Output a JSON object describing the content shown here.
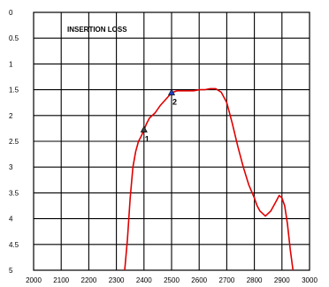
{
  "chart_data": {
    "type": "line",
    "title": "INSERTION LOSS",
    "xlabel": "",
    "ylabel": "",
    "xlim": [
      2000,
      3000
    ],
    "ylim": [
      0,
      5
    ],
    "y_inverted": true,
    "grid": true,
    "x_ticks": [
      2000,
      2100,
      2200,
      2300,
      2400,
      2500,
      2600,
      2700,
      2800,
      2900,
      3000
    ],
    "y_ticks": [
      0,
      0.5,
      1,
      1.5,
      2,
      2.5,
      3,
      3.5,
      4,
      4.5,
      5
    ],
    "y_tick_labels": [
      "0",
      "0.5",
      "1",
      "1.5",
      "2",
      "2.5",
      "3",
      "3.5",
      "4",
      "4.5",
      "5"
    ],
    "series": [
      {
        "color": "#e00000",
        "x": [
          2330,
          2340,
          2350,
          2360,
          2370,
          2380,
          2390,
          2400,
          2410,
          2420,
          2440,
          2460,
          2480,
          2500,
          2520,
          2540,
          2560,
          2580,
          2600,
          2620,
          2640,
          2660,
          2680,
          2700,
          2720,
          2740,
          2760,
          2780,
          2800,
          2810,
          2820,
          2840,
          2860,
          2880,
          2890,
          2900,
          2910,
          2920,
          2930,
          2940
        ],
        "y": [
          5.0,
          4.4,
          3.6,
          3.0,
          2.7,
          2.5,
          2.4,
          2.28,
          2.15,
          2.05,
          1.95,
          1.8,
          1.68,
          1.56,
          1.52,
          1.52,
          1.52,
          1.52,
          1.5,
          1.5,
          1.48,
          1.48,
          1.55,
          1.75,
          2.15,
          2.6,
          3.0,
          3.35,
          3.6,
          3.75,
          3.85,
          3.95,
          3.85,
          3.65,
          3.55,
          3.6,
          3.75,
          4.1,
          4.6,
          5.0
        ]
      }
    ],
    "markers": [
      {
        "label": "1",
        "x": 2400,
        "y": 2.27,
        "color": "#404040"
      },
      {
        "label": "2",
        "x": 2500,
        "y": 1.55,
        "color": "#2040c0"
      }
    ]
  }
}
